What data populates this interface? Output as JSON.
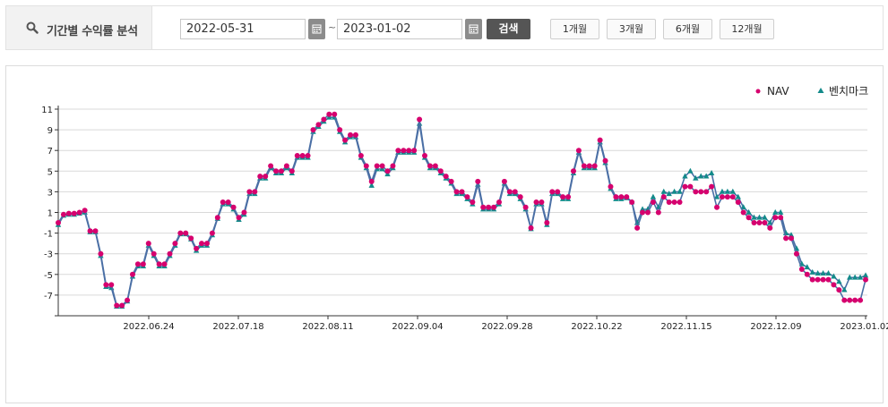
{
  "header": {
    "title": "기간별 수익률 분석",
    "start_date": "2022-05-31",
    "end_date": "2023-01-02",
    "tilde": "~",
    "search_label": "검색",
    "period_buttons": [
      "1개월",
      "3개월",
      "6개월",
      "12개월"
    ]
  },
  "icons": {
    "title_icon": "search-icon",
    "calendar_icon": "calendar-icon"
  },
  "colors": {
    "nav": "#d6006e",
    "benchmark": "#138a8a",
    "line": "#4a6fa5"
  },
  "chart_data": {
    "type": "line",
    "title": "",
    "xlabel": "",
    "ylabel": "",
    "ylim": [
      -9,
      11
    ],
    "y_ticks": [
      "11",
      "9",
      "7",
      "5",
      "3",
      "1",
      "-1",
      "-3",
      "-5",
      "-7"
    ],
    "x_tick_labels": [
      "2022.06.24",
      "2022.07.18",
      "2022.08.11",
      "2022.09.04",
      "2022.09.28",
      "2022.10.22",
      "2022.11.15",
      "2022.12.09",
      "2023.01.02"
    ],
    "grid": true,
    "legend_position": "top-right",
    "series": [
      {
        "name": "NAV",
        "marker": "circle",
        "values": [
          0.0,
          0.8,
          0.9,
          0.9,
          1.0,
          1.2,
          -0.8,
          -0.8,
          -3.0,
          -6.0,
          -6.0,
          -8.0,
          -8.0,
          -7.5,
          -5.0,
          -4.0,
          -4.0,
          -2.0,
          -3.0,
          -4.0,
          -4.0,
          -3.0,
          -2.0,
          -1.0,
          -1.0,
          -1.5,
          -2.5,
          -2.0,
          -2.0,
          -1.0,
          0.5,
          2.0,
          2.0,
          1.5,
          0.5,
          1.0,
          3.0,
          3.0,
          4.5,
          4.5,
          5.5,
          5.0,
          5.0,
          5.5,
          5.0,
          6.5,
          6.5,
          6.5,
          9.0,
          9.5,
          10.0,
          10.5,
          10.5,
          9.0,
          8.0,
          8.5,
          8.5,
          6.5,
          5.5,
          4.0,
          5.5,
          5.5,
          5.0,
          5.5,
          7.0,
          7.0,
          7.0,
          7.0,
          10.0,
          6.5,
          5.5,
          5.5,
          5.0,
          4.5,
          4.0,
          3.0,
          3.0,
          2.5,
          2.0,
          4.0,
          1.5,
          1.5,
          1.5,
          2.0,
          4.0,
          3.0,
          3.0,
          2.5,
          1.5,
          -0.5,
          2.0,
          2.0,
          0.0,
          3.0,
          3.0,
          2.5,
          2.5,
          5.0,
          7.0,
          5.5,
          5.5,
          5.5,
          8.0,
          6.0,
          3.5,
          2.5,
          2.5,
          2.5,
          2.0,
          -0.5,
          1.0,
          1.0,
          2.0,
          1.0,
          2.5,
          2.0,
          2.0,
          2.0,
          3.5,
          3.5,
          3.0,
          3.0,
          3.0,
          3.5,
          1.5,
          2.5,
          2.5,
          2.5,
          2.0,
          1.0,
          0.5,
          0.0,
          0.0,
          0.0,
          -0.5,
          0.5,
          0.5,
          -1.5,
          -1.5,
          -3.0,
          -4.5,
          -5.0,
          -5.5,
          -5.5,
          -5.5,
          -5.5,
          -6.0,
          -6.5,
          -7.5,
          -7.5,
          -7.5,
          -7.5,
          -5.5
        ],
        "color": "#d6006e"
      },
      {
        "name": "벤치마크",
        "marker": "triangle",
        "values": [
          -0.2,
          0.7,
          0.8,
          0.8,
          0.9,
          1.0,
          -0.9,
          -0.9,
          -3.2,
          -6.2,
          -6.3,
          -8.1,
          -8.1,
          -7.6,
          -5.2,
          -4.2,
          -4.2,
          -2.2,
          -3.2,
          -4.2,
          -4.2,
          -3.2,
          -2.2,
          -1.1,
          -1.1,
          -1.6,
          -2.7,
          -2.2,
          -2.2,
          -1.2,
          0.4,
          1.8,
          1.8,
          1.3,
          0.3,
          0.8,
          2.8,
          2.8,
          4.3,
          4.3,
          5.3,
          4.8,
          4.8,
          5.3,
          4.8,
          6.3,
          6.3,
          6.3,
          8.8,
          9.3,
          9.8,
          10.2,
          10.2,
          8.8,
          7.8,
          8.3,
          8.3,
          6.3,
          5.3,
          3.6,
          5.2,
          5.2,
          4.7,
          5.3,
          6.8,
          6.8,
          6.8,
          6.8,
          9.6,
          6.3,
          5.3,
          5.3,
          4.8,
          4.3,
          3.8,
          2.8,
          2.8,
          2.3,
          1.8,
          3.7,
          1.3,
          1.3,
          1.3,
          1.8,
          3.8,
          2.8,
          2.8,
          2.3,
          1.3,
          -0.6,
          1.8,
          1.8,
          -0.2,
          2.8,
          2.8,
          2.3,
          2.3,
          4.8,
          6.8,
          5.3,
          5.3,
          5.3,
          7.8,
          5.8,
          3.3,
          2.3,
          2.3,
          2.4,
          2.0,
          0.0,
          1.3,
          1.3,
          2.5,
          1.5,
          3.0,
          2.8,
          3.0,
          3.0,
          4.5,
          5.0,
          4.3,
          4.5,
          4.5,
          4.8,
          2.5,
          3.0,
          3.0,
          3.0,
          2.5,
          1.5,
          1.0,
          0.5,
          0.5,
          0.5,
          0.0,
          1.0,
          1.0,
          -1.0,
          -1.2,
          -2.5,
          -4.0,
          -4.3,
          -4.8,
          -4.9,
          -4.9,
          -4.9,
          -5.2,
          -5.7,
          -6.5,
          -5.3,
          -5.3,
          -5.3,
          -5.1
        ],
        "color": "#138a8a"
      }
    ]
  }
}
